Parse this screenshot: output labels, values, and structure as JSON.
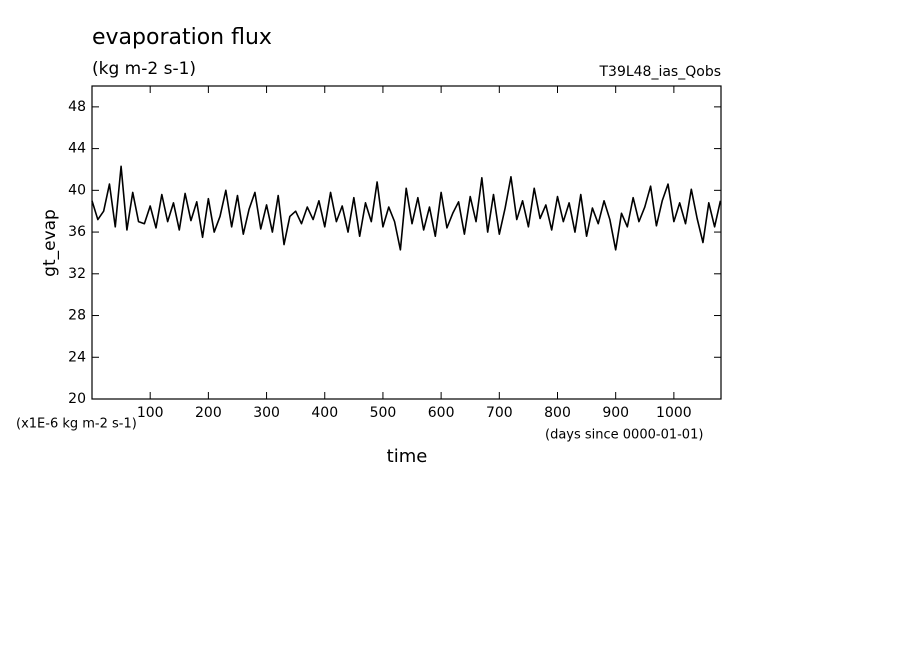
{
  "chart_data": {
    "type": "line",
    "title": "evaporation flux",
    "subtitle": "(kg m-2 s-1)",
    "annotation": "T39L48_ias_Qobs",
    "y_label": "gt_evap",
    "x_label": "time",
    "y_unit_note": "(x1E-6 kg m-2 s-1)",
    "x_unit_note": "(days since 0000-01-01)",
    "xlim": [
      0,
      1081
    ],
    "ylim": [
      20,
      50
    ],
    "xticks": [
      100,
      200,
      300,
      400,
      500,
      600,
      700,
      800,
      900,
      1000
    ],
    "yticks": [
      20,
      24,
      28,
      32,
      36,
      40,
      44,
      48
    ],
    "x": [
      0,
      10,
      20,
      30,
      40,
      50,
      60,
      70,
      80,
      90,
      100,
      110,
      120,
      130,
      140,
      150,
      160,
      170,
      180,
      190,
      200,
      210,
      220,
      230,
      240,
      250,
      260,
      270,
      280,
      290,
      300,
      310,
      320,
      330,
      340,
      350,
      360,
      370,
      380,
      390,
      400,
      410,
      420,
      430,
      440,
      450,
      460,
      470,
      480,
      490,
      500,
      510,
      520,
      530,
      540,
      550,
      560,
      570,
      580,
      590,
      600,
      610,
      620,
      630,
      640,
      650,
      660,
      670,
      680,
      690,
      700,
      710,
      720,
      730,
      740,
      750,
      760,
      770,
      780,
      790,
      800,
      810,
      820,
      830,
      840,
      850,
      860,
      870,
      880,
      890,
      900,
      910,
      920,
      930,
      940,
      950,
      960,
      970,
      980,
      990,
      1000,
      1010,
      1020,
      1030,
      1040,
      1050,
      1060,
      1070,
      1080
    ],
    "series": [
      {
        "color": "#000000",
        "values": [
          39.0,
          37.2,
          38.0,
          40.6,
          36.5,
          42.3,
          36.2,
          39.8,
          37.0,
          36.8,
          38.5,
          36.4,
          39.6,
          37.0,
          38.8,
          36.2,
          39.7,
          37.1,
          38.9,
          35.5,
          39.2,
          36.0,
          37.5,
          40.0,
          36.5,
          39.5,
          35.8,
          38.2,
          39.8,
          36.3,
          38.6,
          36.0,
          39.5,
          34.8,
          37.5,
          38.0,
          36.8,
          38.4,
          37.2,
          39.0,
          36.5,
          39.8,
          37.0,
          38.5,
          36.0,
          39.3,
          35.6,
          38.8,
          37.0,
          40.8,
          36.5,
          38.4,
          37.0,
          34.3,
          40.2,
          36.8,
          39.3,
          36.2,
          38.4,
          35.6,
          39.8,
          36.4,
          37.8,
          38.9,
          35.8,
          39.4,
          37.0,
          41.2,
          36.0,
          39.6,
          35.8,
          38.3,
          41.3,
          37.2,
          39.0,
          36.5,
          40.2,
          37.3,
          38.6,
          36.2,
          39.4,
          37.0,
          38.8,
          36.0,
          39.6,
          35.6,
          38.3,
          36.8,
          39.0,
          37.2,
          34.3,
          37.8,
          36.5,
          39.3,
          37.0,
          38.4,
          40.4,
          36.6,
          39.0,
          40.6,
          37.0,
          38.8,
          36.8,
          40.1,
          37.3,
          35.0,
          38.8,
          36.5,
          39.0
        ]
      }
    ]
  }
}
